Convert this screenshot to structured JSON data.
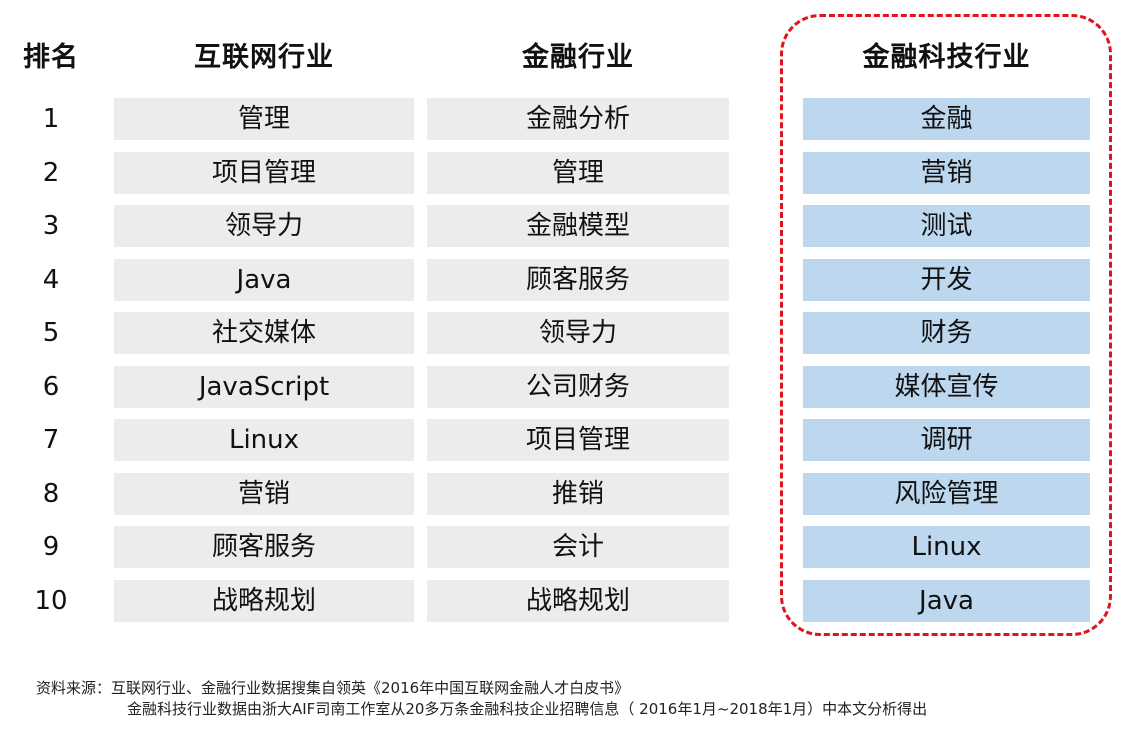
{
  "headers": {
    "rank": "排名",
    "internet": "互联网行业",
    "finance": "金融行业",
    "fintech": "金融科技行业"
  },
  "rows": [
    {
      "rank": "1",
      "internet": "管理",
      "finance": "金融分析",
      "fintech": "金融"
    },
    {
      "rank": "2",
      "internet": "项目管理",
      "finance": "管理",
      "fintech": "营销"
    },
    {
      "rank": "3",
      "internet": "领导力",
      "finance": "金融模型",
      "fintech": "测试"
    },
    {
      "rank": "4",
      "internet": "Java",
      "finance": "顾客服务",
      "fintech": "开发"
    },
    {
      "rank": "5",
      "internet": "社交媒体",
      "finance": "领导力",
      "fintech": "财务"
    },
    {
      "rank": "6",
      "internet": "JavaScript",
      "finance": "公司财务",
      "fintech": "媒体宣传"
    },
    {
      "rank": "7",
      "internet": "Linux",
      "finance": "项目管理",
      "fintech": "调研"
    },
    {
      "rank": "8",
      "internet": "营销",
      "finance": "推销",
      "fintech": "风险管理"
    },
    {
      "rank": "9",
      "internet": "顾客服务",
      "finance": "会计",
      "fintech": "Linux"
    },
    {
      "rank": "10",
      "internet": "战略规划",
      "finance": "战略规划",
      "fintech": "Java"
    }
  ],
  "source": {
    "line1": "资料来源：互联网行业、金融行业数据搜集自领英《2016年中国互联网金融人才白皮书》",
    "line2": "金融科技行业数据由浙大AIF司南工作室从20多万条金融科技企业招聘信息（  2016年1月~2018年1月）中本文分析得出"
  },
  "colors": {
    "grey_cell": "#ececec",
    "blue_cell": "#bcd7ee",
    "highlight_border": "#e3131b"
  }
}
